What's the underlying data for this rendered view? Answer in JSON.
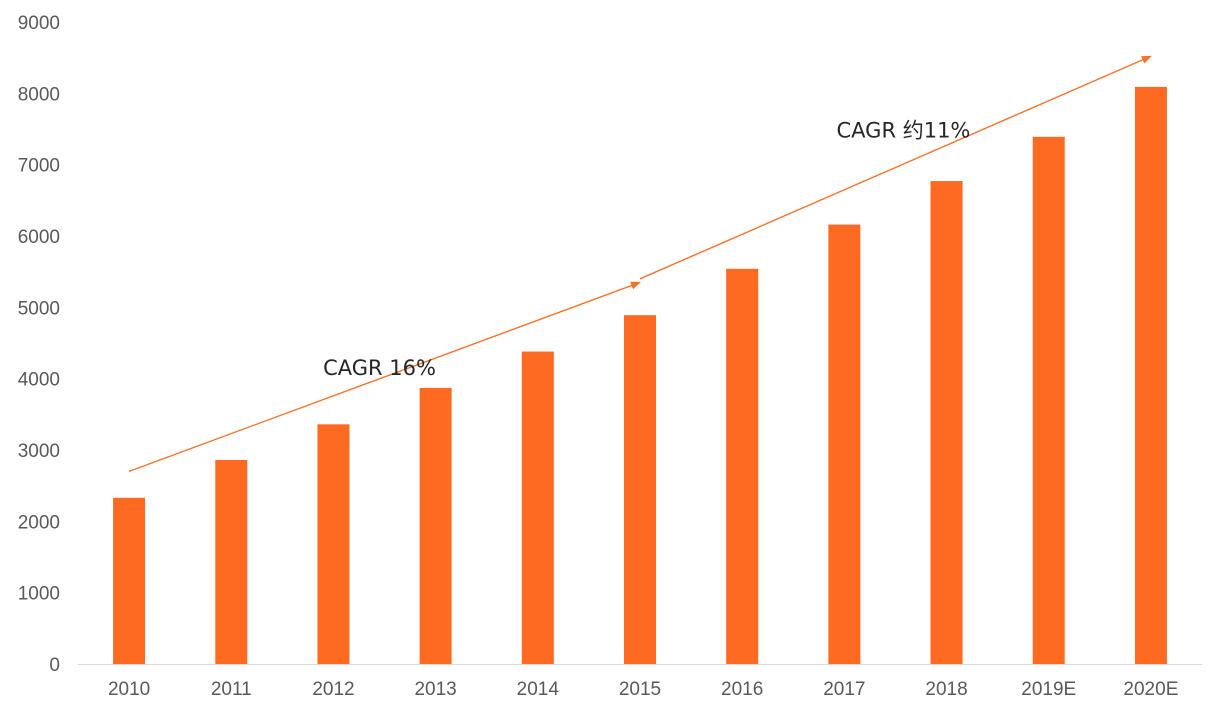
{
  "chart_data": {
    "type": "bar",
    "categories": [
      "2010",
      "2011",
      "2012",
      "2013",
      "2014",
      "2015",
      "2016",
      "2017",
      "2018",
      "2019E",
      "2020E"
    ],
    "values": [
      2330,
      2860,
      3360,
      3870,
      4380,
      4890,
      5540,
      6160,
      6770,
      7390,
      8090
    ],
    "ylim": [
      0,
      9000
    ],
    "yticks": [
      "0",
      "1000",
      "2000",
      "3000",
      "4000",
      "5000",
      "6000",
      "7000",
      "8000",
      "9000"
    ],
    "grid": false,
    "legend": "none",
    "colors": {
      "bar": "#FF6A23",
      "arrow": "#F4722B",
      "text": "#262626",
      "tick": "#595959",
      "axis": "#D9D9D9"
    },
    "annotations": [
      {
        "text": "CAGR 16%",
        "from_category": "2010",
        "to_category": "2015",
        "from_value": 2700,
        "to_value": 5350
      },
      {
        "text": "CAGR 约11%",
        "from_category": "2015",
        "to_category": "2020E",
        "from_value": 5400,
        "to_value": 8520
      }
    ]
  }
}
